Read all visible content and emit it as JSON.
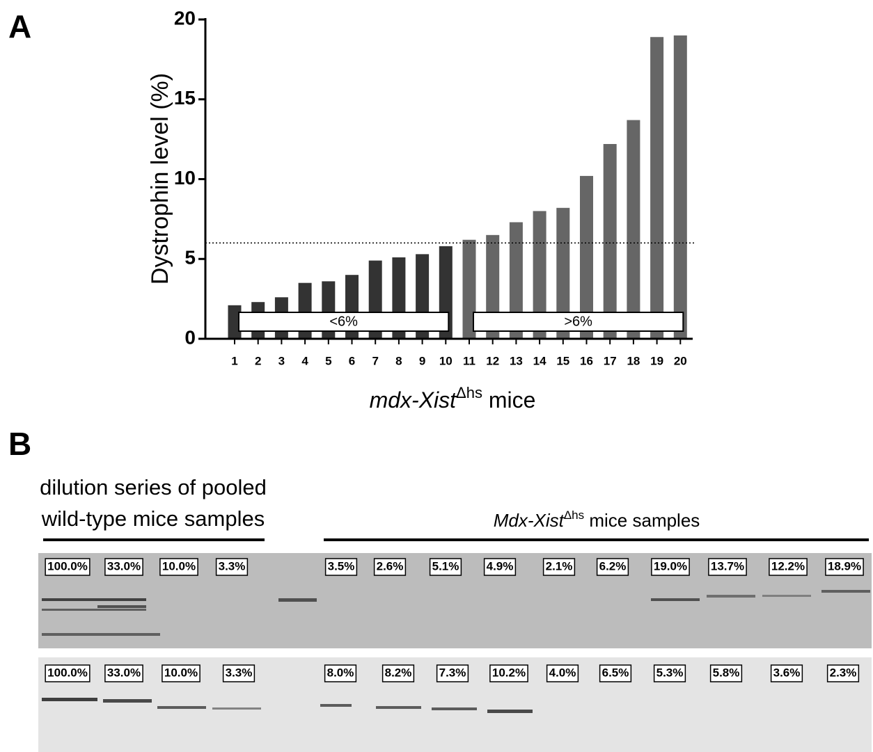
{
  "panels": [
    "A",
    "B"
  ],
  "chart_data": {
    "type": "bar",
    "ylabel": "Dystrophin level (%)",
    "xlabel": {
      "italic": "mdx-Xist",
      "sup": "Δhs",
      "rest": " mice"
    },
    "categories": [
      "1",
      "2",
      "3",
      "4",
      "5",
      "6",
      "7",
      "8",
      "9",
      "10",
      "11",
      "12",
      "13",
      "14",
      "15",
      "16",
      "17",
      "18",
      "19",
      "20"
    ],
    "values": [
      2.1,
      2.3,
      2.6,
      3.5,
      3.6,
      4.0,
      4.9,
      5.1,
      5.3,
      5.8,
      6.2,
      6.5,
      7.3,
      8.0,
      8.2,
      10.2,
      12.2,
      13.7,
      18.9,
      19.0
    ],
    "colors": [
      "#333333",
      "#666666"
    ],
    "reference_line": 6,
    "group_labels": [
      "<6%",
      ">6%"
    ],
    "ylim": [
      0,
      20
    ],
    "yticks": [
      0,
      5,
      10,
      15,
      20
    ]
  },
  "blot": {
    "header_left": [
      "dilution series of pooled",
      "wild-type mice samples"
    ],
    "header_right": {
      "italic": "Mdx-Xist",
      "sup": "Δhs",
      "rest": " mice samples"
    },
    "rows": [
      [
        "100.0%",
        "33.0%",
        "10.0%",
        "3.3%",
        "3.5%",
        "2.6%",
        "5.1%",
        "4.9%",
        "2.1%",
        "6.2%",
        "19.0%",
        "13.7%",
        "12.2%",
        "18.9%"
      ],
      [
        "100.0%",
        "33.0%",
        "10.0%",
        "3.3%",
        "8.0%",
        "8.2%",
        "7.3%",
        "10.2%",
        "4.0%",
        "6.5%",
        "5.3%",
        "5.8%",
        "3.6%",
        "2.3%"
      ]
    ]
  }
}
